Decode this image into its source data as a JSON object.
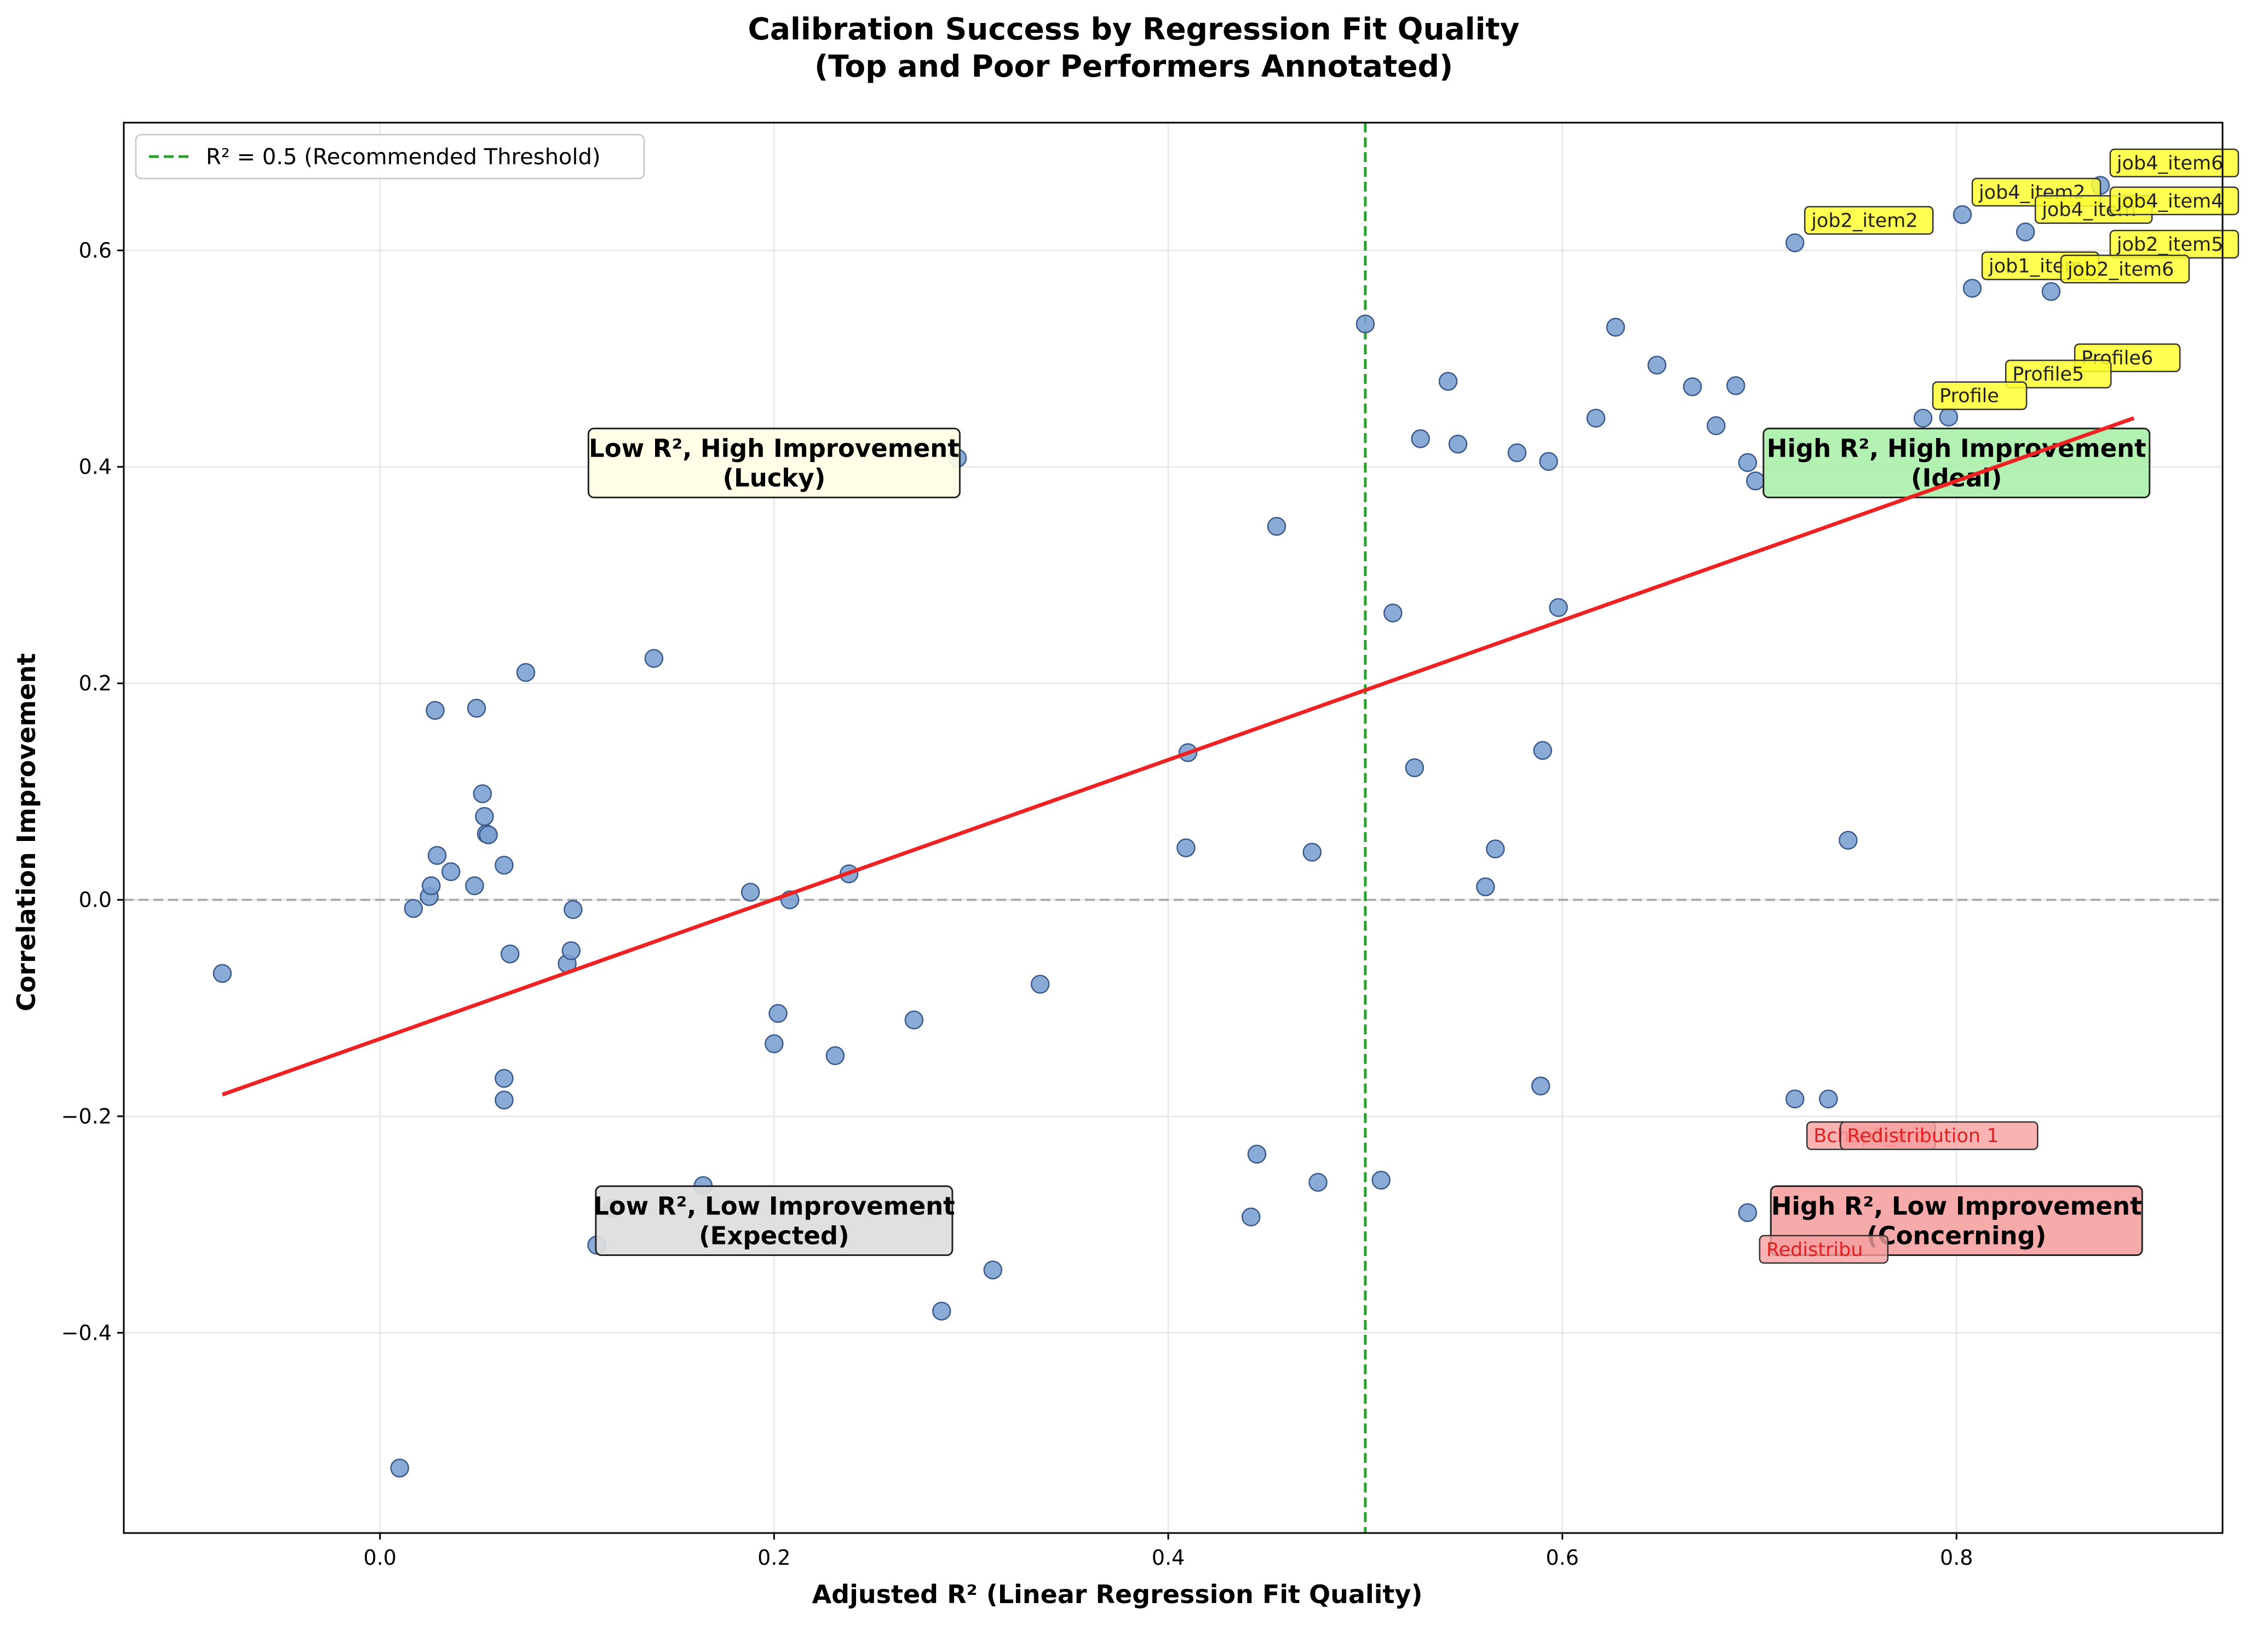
{
  "chart_data": {
    "type": "scatter",
    "title": "Calibration Success by Regression Fit Quality",
    "subtitle": "(Top and Poor Performers Annotated)",
    "xlabel": "Adjusted R² (Linear Regression Fit Quality)",
    "ylabel": "Correlation Improvement",
    "xlim": [
      -0.13,
      0.935
    ],
    "ylim": [
      -0.585,
      0.718
    ],
    "x_ticks": [
      0.0,
      0.2,
      0.4,
      0.6,
      0.8
    ],
    "x_tick_labels": [
      "0.0",
      "0.2",
      "0.4",
      "0.6",
      "0.8"
    ],
    "y_ticks": [
      -0.4,
      -0.2,
      0.0,
      0.2,
      0.4,
      0.6
    ],
    "y_tick_labels": [
      "−0.4",
      "−0.2",
      "0.0",
      "0.2",
      "0.4",
      "0.6"
    ],
    "grid": true,
    "legend": {
      "placement": "top-left",
      "entries": [
        {
          "label": "R² = 0.5 (Recommended Threshold)",
          "style": "dashed",
          "color": "#2ca02c"
        }
      ]
    },
    "colors": {
      "points": "#7b9fd2",
      "point_edge": "#3a5a8c",
      "fit_line": "#ee2222",
      "threshold": "#2ca02c",
      "zero_line": "#aaaaaa",
      "top_label_bg": "#ffff33",
      "poor_label_bg": "#f8a0a0",
      "poor_label_text": "#e02020"
    },
    "threshold_x": 0.5,
    "zero_line_y": 0.0,
    "fit_line": {
      "x": [
        -0.08,
        0.89
      ],
      "y": [
        -0.18,
        0.445
      ]
    },
    "points": [
      {
        "x": -0.08,
        "y": -0.068
      },
      {
        "x": 0.01,
        "y": -0.525
      },
      {
        "x": 0.017,
        "y": -0.008
      },
      {
        "x": 0.025,
        "y": 0.003
      },
      {
        "x": 0.026,
        "y": 0.013
      },
      {
        "x": 0.028,
        "y": 0.175
      },
      {
        "x": 0.029,
        "y": 0.041
      },
      {
        "x": 0.036,
        "y": 0.026
      },
      {
        "x": 0.048,
        "y": 0.013
      },
      {
        "x": 0.049,
        "y": 0.177
      },
      {
        "x": 0.052,
        "y": 0.098
      },
      {
        "x": 0.053,
        "y": 0.077
      },
      {
        "x": 0.054,
        "y": 0.061
      },
      {
        "x": 0.055,
        "y": 0.06
      },
      {
        "x": 0.063,
        "y": 0.032
      },
      {
        "x": 0.063,
        "y": -0.165
      },
      {
        "x": 0.063,
        "y": -0.185
      },
      {
        "x": 0.066,
        "y": -0.05
      },
      {
        "x": 0.074,
        "y": 0.21
      },
      {
        "x": 0.095,
        "y": -0.059
      },
      {
        "x": 0.097,
        "y": -0.047
      },
      {
        "x": 0.098,
        "y": -0.009
      },
      {
        "x": 0.11,
        "y": -0.319
      },
      {
        "x": 0.118,
        "y": -0.285
      },
      {
        "x": 0.139,
        "y": 0.223
      },
      {
        "x": 0.164,
        "y": -0.264
      },
      {
        "x": 0.188,
        "y": 0.007
      },
      {
        "x": 0.2,
        "y": -0.133
      },
      {
        "x": 0.202,
        "y": -0.105
      },
      {
        "x": 0.208,
        "y": 0.0
      },
      {
        "x": 0.231,
        "y": -0.144
      },
      {
        "x": 0.238,
        "y": 0.024
      },
      {
        "x": 0.271,
        "y": -0.111
      },
      {
        "x": 0.285,
        "y": -0.38
      },
      {
        "x": 0.293,
        "y": 0.408
      },
      {
        "x": 0.311,
        "y": -0.342
      },
      {
        "x": 0.335,
        "y": -0.078
      },
      {
        "x": 0.409,
        "y": 0.048
      },
      {
        "x": 0.41,
        "y": 0.136
      },
      {
        "x": 0.442,
        "y": -0.293
      },
      {
        "x": 0.445,
        "y": -0.235
      },
      {
        "x": 0.455,
        "y": 0.345
      },
      {
        "x": 0.473,
        "y": 0.044
      },
      {
        "x": 0.476,
        "y": -0.261
      },
      {
        "x": 0.5,
        "y": 0.532
      },
      {
        "x": 0.508,
        "y": -0.259
      },
      {
        "x": 0.514,
        "y": 0.265
      },
      {
        "x": 0.525,
        "y": 0.122
      },
      {
        "x": 0.528,
        "y": 0.426
      },
      {
        "x": 0.542,
        "y": 0.479
      },
      {
        "x": 0.547,
        "y": 0.421
      },
      {
        "x": 0.561,
        "y": 0.012
      },
      {
        "x": 0.566,
        "y": 0.047
      },
      {
        "x": 0.577,
        "y": 0.413
      },
      {
        "x": 0.589,
        "y": -0.172
      },
      {
        "x": 0.59,
        "y": 0.138
      },
      {
        "x": 0.593,
        "y": 0.405
      },
      {
        "x": 0.598,
        "y": 0.27
      },
      {
        "x": 0.617,
        "y": 0.445
      },
      {
        "x": 0.627,
        "y": 0.529
      },
      {
        "x": 0.648,
        "y": 0.494
      },
      {
        "x": 0.666,
        "y": 0.474
      },
      {
        "x": 0.678,
        "y": 0.438
      },
      {
        "x": 0.688,
        "y": 0.475
      },
      {
        "x": 0.694,
        "y": -0.289
      },
      {
        "x": 0.694,
        "y": 0.404
      },
      {
        "x": 0.698,
        "y": 0.387
      },
      {
        "x": 0.718,
        "y": 0.607
      },
      {
        "x": 0.718,
        "y": -0.184
      },
      {
        "x": 0.735,
        "y": -0.184
      },
      {
        "x": 0.745,
        "y": 0.055
      },
      {
        "x": 0.783,
        "y": 0.445
      },
      {
        "x": 0.796,
        "y": 0.446
      },
      {
        "x": 0.803,
        "y": 0.633
      },
      {
        "x": 0.808,
        "y": 0.565
      },
      {
        "x": 0.835,
        "y": 0.617
      },
      {
        "x": 0.848,
        "y": 0.562
      },
      {
        "x": 0.873,
        "y": 0.66
      }
    ],
    "quadrant_labels": [
      {
        "line1": "Low R², High Improvement",
        "line2": "(Lucky)",
        "x": 0.2,
        "y": 0.4,
        "bg": "#ffffe6"
      },
      {
        "line1": "High R², High Improvement",
        "line2": "(Ideal)",
        "x": 0.8,
        "y": 0.4,
        "bg": "#adf0ad"
      },
      {
        "line1": "Low R², Low Improvement",
        "line2": "(Expected)",
        "x": 0.2,
        "y": -0.3,
        "bg": "#dddddd"
      },
      {
        "line1": "High R², Low Improvement",
        "line2": "(Concerning)",
        "x": 0.8,
        "y": -0.3,
        "bg": "#f5a3a3"
      }
    ],
    "annotations": [
      {
        "text": "job2_item2",
        "x": 0.718,
        "y": 0.607,
        "kind": "top"
      },
      {
        "text": "job4_item2",
        "x": 0.803,
        "y": 0.633,
        "kind": "top"
      },
      {
        "text": "job4_item",
        "x": 0.835,
        "y": 0.617,
        "kind": "top"
      },
      {
        "text": "job4_item6",
        "x": 0.873,
        "y": 0.66,
        "kind": "top"
      },
      {
        "text": "job4_item4",
        "x": 0.873,
        "y": 0.625,
        "kind": "top"
      },
      {
        "text": "job2_item5",
        "x": 0.873,
        "y": 0.585,
        "kind": "top"
      },
      {
        "text": "job1_item",
        "x": 0.808,
        "y": 0.565,
        "kind": "top"
      },
      {
        "text": "job2_item6",
        "x": 0.848,
        "y": 0.562,
        "kind": "top"
      },
      {
        "text": "Profile6",
        "x": 0.855,
        "y": 0.48,
        "kind": "top"
      },
      {
        "text": "Profile5",
        "x": 0.82,
        "y": 0.465,
        "kind": "top"
      },
      {
        "text": "Profile",
        "x": 0.783,
        "y": 0.445,
        "kind": "top"
      },
      {
        "text": "Bchap1_aro",
        "x": 0.718,
        "y": -0.184,
        "kind": "poor"
      },
      {
        "text": "Redistribution 1",
        "x": 0.735,
        "y": -0.184,
        "kind": "poor"
      },
      {
        "text": "Redistribu",
        "x": 0.694,
        "y": -0.289,
        "kind": "poor"
      }
    ]
  }
}
